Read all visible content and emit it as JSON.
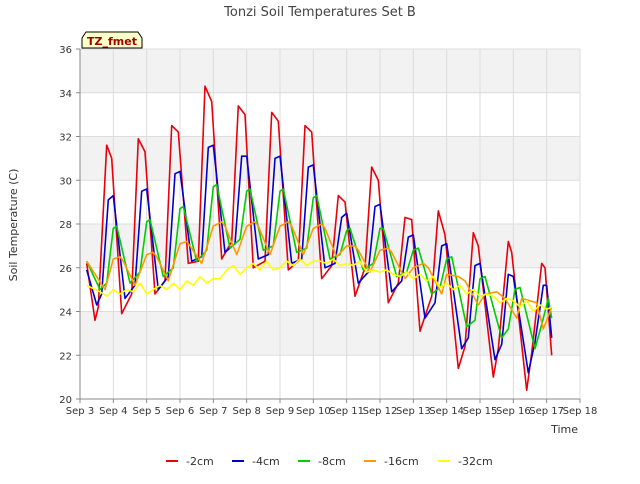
{
  "chart_data": {
    "type": "line",
    "title": "Tonzi Soil Temperatures Set B",
    "xlabel": "Time",
    "ylabel": "Soil Temperature (C)",
    "annotation": "TZ_fmet",
    "ylim": [
      20,
      36
    ],
    "yticks": [
      20,
      22,
      24,
      26,
      28,
      30,
      32,
      34,
      36
    ],
    "xlim": [
      3,
      18
    ],
    "xticks": [
      {
        "value": 3,
        "label": "Sep 3"
      },
      {
        "value": 4,
        "label": "Sep 4"
      },
      {
        "value": 5,
        "label": "Sep 5"
      },
      {
        "value": 6,
        "label": "Sep 6"
      },
      {
        "value": 7,
        "label": "Sep 7"
      },
      {
        "value": 8,
        "label": "Sep 8"
      },
      {
        "value": 9,
        "label": "Sep 9"
      },
      {
        "value": 10,
        "label": "Sep 10"
      },
      {
        "value": 11,
        "label": "Sep 11"
      },
      {
        "value": 12,
        "label": "Sep 12"
      },
      {
        "value": 13,
        "label": "Sep 13"
      },
      {
        "value": 14,
        "label": "Sep 14"
      },
      {
        "value": 15,
        "label": "Sep 15"
      },
      {
        "value": 16,
        "label": "Sep 16"
      },
      {
        "value": 17,
        "label": "Sep 17"
      },
      {
        "value": 18,
        "label": "Sep 18"
      }
    ],
    "grid": true,
    "legend_position": "bottom",
    "series": [
      {
        "name": "-2cm",
        "color": "#e8000b",
        "x": [
          3.2,
          3.45,
          3.55,
          3.8,
          3.95,
          4.25,
          4.55,
          4.75,
          4.95,
          5.25,
          5.55,
          5.75,
          5.95,
          6.25,
          6.55,
          6.75,
          6.95,
          7.25,
          7.55,
          7.75,
          7.95,
          8.2,
          8.55,
          8.75,
          8.95,
          9.25,
          9.55,
          9.75,
          9.95,
          10.25,
          10.55,
          10.75,
          10.95,
          11.25,
          11.55,
          11.75,
          11.95,
          12.25,
          12.55,
          12.75,
          12.95,
          13.2,
          13.55,
          13.75,
          13.95,
          14.35,
          14.55,
          14.8,
          14.95,
          15.4,
          15.55,
          15.85,
          15.95,
          16.4,
          16.55,
          16.85,
          16.95,
          17.15
        ],
        "y": [
          26.2,
          23.6,
          24.2,
          31.6,
          31.0,
          23.9,
          24.8,
          31.9,
          31.3,
          24.8,
          25.4,
          32.5,
          32.2,
          26.2,
          26.3,
          34.3,
          33.6,
          26.4,
          27.2,
          33.4,
          33.0,
          26.0,
          26.3,
          33.1,
          32.7,
          25.9,
          26.3,
          32.5,
          32.2,
          25.5,
          26.1,
          29.3,
          29.0,
          24.7,
          26.0,
          30.6,
          30.0,
          24.4,
          25.3,
          28.3,
          28.2,
          23.1,
          24.7,
          28.6,
          27.5,
          21.4,
          22.4,
          27.6,
          27.0,
          21.0,
          22.3,
          27.2,
          26.7,
          20.4,
          22.1,
          26.2,
          26.0,
          22.0
        ]
      },
      {
        "name": "-4cm",
        "color": "#0000cd",
        "x": [
          3.2,
          3.5,
          3.65,
          3.85,
          4.0,
          4.35,
          4.65,
          4.85,
          5.0,
          5.35,
          5.65,
          5.85,
          6.0,
          6.35,
          6.65,
          6.85,
          7.0,
          7.35,
          7.65,
          7.85,
          8.0,
          8.35,
          8.65,
          8.85,
          9.0,
          9.35,
          9.65,
          9.85,
          10.0,
          10.35,
          10.65,
          10.85,
          11.0,
          11.35,
          11.65,
          11.85,
          12.0,
          12.35,
          12.65,
          12.85,
          13.0,
          13.35,
          13.65,
          13.85,
          14.0,
          14.45,
          14.65,
          14.85,
          15.0,
          15.45,
          15.65,
          15.85,
          16.0,
          16.45,
          16.65,
          16.9,
          17.0,
          17.15
        ],
        "y": [
          25.9,
          24.3,
          24.8,
          29.1,
          29.3,
          24.6,
          25.2,
          29.5,
          29.6,
          25.0,
          25.6,
          30.3,
          30.4,
          26.3,
          26.5,
          31.5,
          31.6,
          26.7,
          27.1,
          31.1,
          31.1,
          26.4,
          26.6,
          31.0,
          31.1,
          26.2,
          26.4,
          30.6,
          30.7,
          26.0,
          26.2,
          28.3,
          28.5,
          25.3,
          25.8,
          28.8,
          28.9,
          24.9,
          25.4,
          27.4,
          27.5,
          23.7,
          24.4,
          27.0,
          27.1,
          22.3,
          22.8,
          26.1,
          26.2,
          21.8,
          22.5,
          25.7,
          25.6,
          21.2,
          22.6,
          25.2,
          25.2,
          22.8
        ]
      },
      {
        "name": "-8cm",
        "color": "#00cc00",
        "x": [
          3.2,
          3.6,
          3.8,
          4.0,
          4.1,
          4.5,
          4.8,
          5.0,
          5.1,
          5.5,
          5.8,
          6.0,
          6.1,
          6.5,
          6.8,
          7.0,
          7.1,
          7.5,
          7.8,
          8.0,
          8.1,
          8.5,
          8.8,
          9.0,
          9.1,
          9.5,
          9.8,
          10.0,
          10.1,
          10.5,
          10.8,
          11.0,
          11.1,
          11.5,
          11.8,
          12.0,
          12.1,
          12.5,
          12.8,
          13.0,
          13.15,
          13.55,
          13.8,
          14.0,
          14.15,
          14.6,
          14.85,
          15.0,
          15.15,
          15.65,
          15.85,
          16.05,
          16.2,
          16.65,
          16.85,
          17.05,
          17.15
        ],
        "y": [
          26.3,
          25.0,
          25.3,
          27.8,
          27.9,
          25.3,
          25.8,
          28.1,
          28.2,
          25.6,
          26.0,
          28.7,
          28.8,
          26.3,
          26.8,
          29.7,
          29.8,
          26.9,
          27.3,
          29.5,
          29.6,
          26.8,
          27.0,
          29.5,
          29.6,
          26.7,
          26.9,
          29.2,
          29.3,
          26.4,
          26.6,
          27.7,
          27.8,
          25.9,
          26.2,
          27.8,
          27.8,
          25.6,
          25.8,
          26.8,
          26.9,
          24.8,
          25.1,
          26.4,
          26.5,
          23.3,
          23.6,
          25.5,
          25.6,
          22.8,
          23.2,
          25.0,
          25.1,
          22.3,
          23.4,
          24.6,
          23.7
        ]
      },
      {
        "name": "-16cm",
        "color": "#ff9900",
        "x": [
          3.2,
          3.75,
          4.0,
          4.2,
          4.3,
          4.65,
          5.0,
          5.2,
          5.3,
          5.65,
          6.0,
          6.2,
          6.3,
          6.65,
          7.0,
          7.25,
          7.35,
          7.7,
          8.0,
          8.25,
          8.35,
          8.7,
          9.0,
          9.25,
          9.35,
          9.7,
          10.0,
          10.25,
          10.35,
          10.7,
          11.0,
          11.25,
          11.35,
          11.7,
          12.0,
          12.25,
          12.35,
          12.75,
          13.0,
          13.3,
          13.45,
          13.85,
          14.0,
          14.35,
          14.55,
          14.95,
          15.15,
          15.5,
          15.75,
          16.1,
          16.25,
          16.7,
          16.9,
          17.15
        ],
        "y": [
          26.3,
          25.0,
          26.4,
          26.5,
          26.3,
          25.2,
          26.6,
          26.7,
          26.5,
          25.4,
          27.1,
          27.2,
          27.0,
          26.2,
          27.9,
          28.1,
          27.9,
          26.6,
          27.9,
          28.1,
          27.9,
          26.6,
          27.9,
          28.1,
          27.9,
          26.6,
          27.8,
          28.0,
          27.8,
          26.5,
          27.0,
          27.0,
          26.8,
          25.8,
          26.8,
          26.9,
          26.7,
          25.5,
          26.0,
          26.2,
          26.0,
          24.8,
          25.7,
          25.6,
          25.4,
          24.3,
          24.8,
          24.9,
          24.6,
          23.7,
          24.6,
          24.4,
          23.2,
          24.2
        ]
      },
      {
        "name": "-32cm",
        "color": "#ffff00",
        "x": [
          3.2,
          3.6,
          3.8,
          4.0,
          4.2,
          4.4,
          4.6,
          4.8,
          5.0,
          5.2,
          5.4,
          5.6,
          5.8,
          6.0,
          6.2,
          6.4,
          6.6,
          6.8,
          7.0,
          7.2,
          7.4,
          7.6,
          7.8,
          8.0,
          8.2,
          8.4,
          8.6,
          8.8,
          9.0,
          9.2,
          9.4,
          9.6,
          9.8,
          10.0,
          10.2,
          10.4,
          10.6,
          10.8,
          11.0,
          11.2,
          11.4,
          11.6,
          11.8,
          12.0,
          12.2,
          12.4,
          12.6,
          12.8,
          13.0,
          13.2,
          13.4,
          13.6,
          13.8,
          14.0,
          14.2,
          14.4,
          14.6,
          14.8,
          15.0,
          15.2,
          15.4,
          15.6,
          15.8,
          16.0,
          16.2,
          16.4,
          16.6,
          16.8,
          17.0,
          17.15
        ],
        "y": [
          25.2,
          24.9,
          24.7,
          25.0,
          24.8,
          25.0,
          24.9,
          25.3,
          24.8,
          25.0,
          25.2,
          25.0,
          25.3,
          25.0,
          25.4,
          25.2,
          25.6,
          25.3,
          25.5,
          25.5,
          25.9,
          26.1,
          25.7,
          26.0,
          26.2,
          25.9,
          26.3,
          25.9,
          26.0,
          26.3,
          26.1,
          26.4,
          26.1,
          26.3,
          26.3,
          26.2,
          26.4,
          26.1,
          26.2,
          26.1,
          26.3,
          25.8,
          25.9,
          25.8,
          25.9,
          25.7,
          25.6,
          25.8,
          25.5,
          25.7,
          25.4,
          25.6,
          25.1,
          25.3,
          25.0,
          25.2,
          24.8,
          25.0,
          24.7,
          24.8,
          24.7,
          24.4,
          24.6,
          24.5,
          24.2,
          24.5,
          24.0,
          24.3,
          24.1,
          24.2
        ]
      }
    ]
  }
}
